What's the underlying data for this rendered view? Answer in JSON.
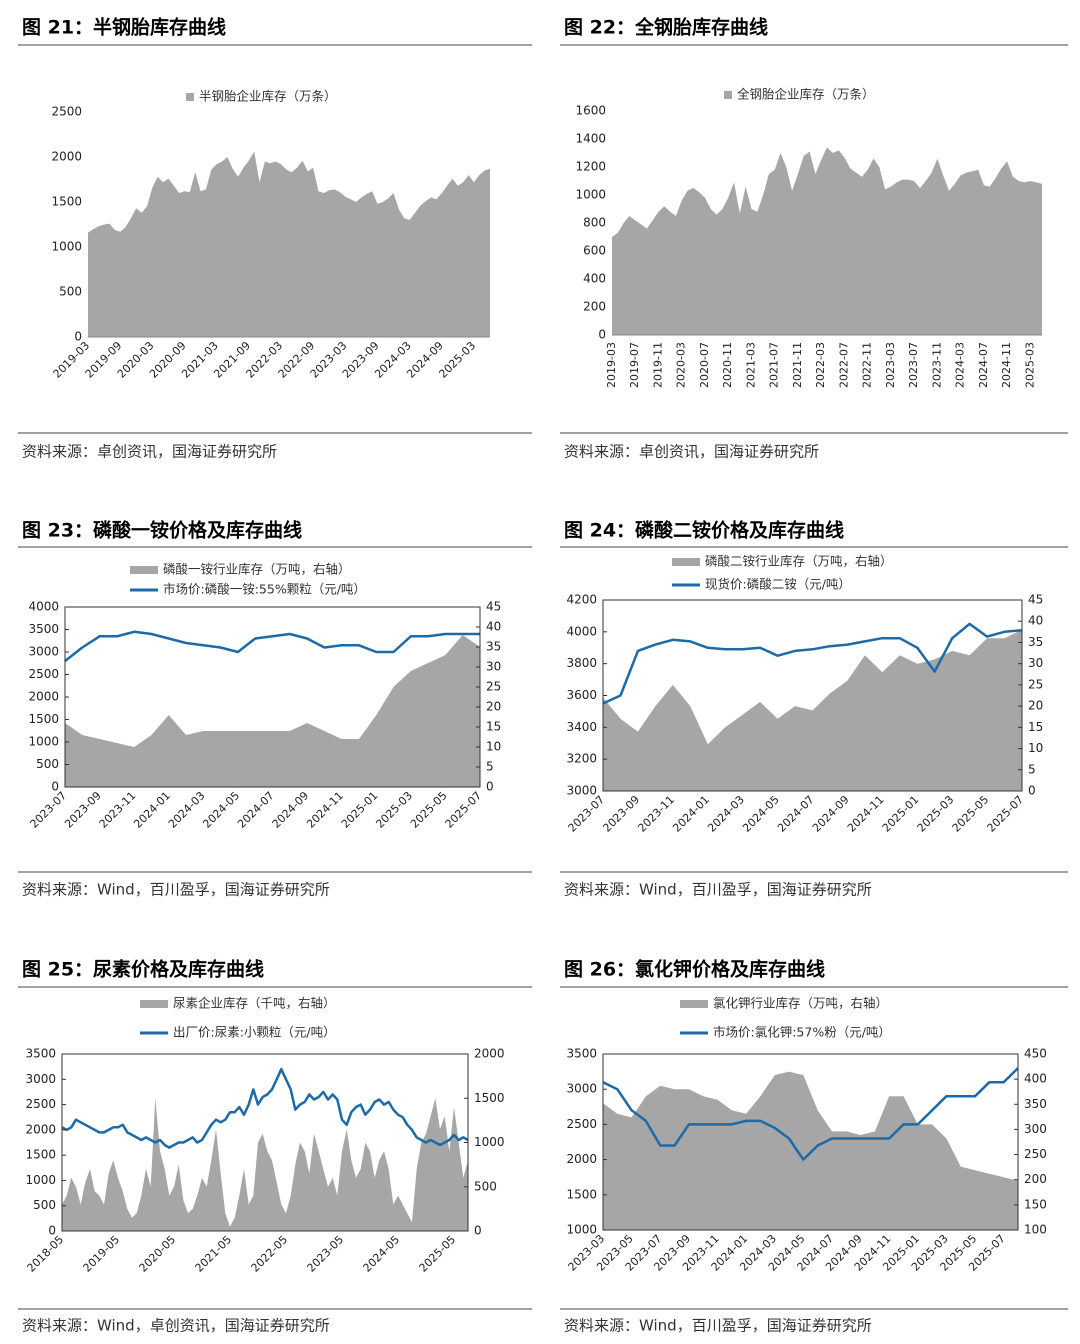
{
  "chart_data": [
    {
      "type": "area",
      "title": "图 21：半钢胎库存曲线",
      "source": "资料来源：卓创资讯，国海证券研究所",
      "categories": [
        "2019-03",
        null,
        null,
        null,
        null,
        null,
        "2019-09",
        null,
        null,
        null,
        null,
        null,
        "2020-03",
        null,
        null,
        null,
        null,
        null,
        "2020-09",
        null,
        null,
        null,
        null,
        null,
        "2021-03",
        null,
        null,
        null,
        null,
        null,
        "2021-09",
        null,
        null,
        null,
        null,
        null,
        "2022-03",
        null,
        null,
        null,
        null,
        null,
        "2022-09",
        null,
        null,
        null,
        null,
        null,
        "2023-03",
        null,
        null,
        null,
        null,
        null,
        "2023-09",
        null,
        null,
        null,
        null,
        null,
        "2024-03",
        null,
        null,
        null,
        null,
        null,
        "2024-09",
        null,
        null,
        null,
        null,
        null,
        "2025-03",
        null,
        null,
        null
      ],
      "series": [
        {
          "name": "半钢胎企业库存（万条）",
          "type": "area",
          "color": "#a6a6a6",
          "values": [
            1160,
            1200,
            1230,
            1250,
            1260,
            1190,
            1170,
            1220,
            1320,
            1430,
            1380,
            1450,
            1660,
            1780,
            1720,
            1760,
            1680,
            1600,
            1620,
            1610,
            1830,
            1620,
            1640,
            1860,
            1920,
            1950,
            2000,
            1870,
            1780,
            1880,
            1960,
            2060,
            1720,
            1950,
            1930,
            1950,
            1920,
            1860,
            1830,
            1880,
            1960,
            1840,
            1880,
            1620,
            1600,
            1630,
            1640,
            1610,
            1560,
            1530,
            1500,
            1550,
            1590,
            1620,
            1480,
            1500,
            1540,
            1600,
            1420,
            1320,
            1300,
            1380,
            1460,
            1510,
            1550,
            1530,
            1600,
            1680,
            1760,
            1680,
            1720,
            1800,
            1720,
            1800,
            1850,
            1870
          ]
        }
      ],
      "ylim": [
        0,
        2500
      ],
      "yticks": [
        0,
        500,
        1000,
        1500,
        2000,
        2500
      ]
    },
    {
      "type": "area",
      "title": "图 22：全钢胎库存曲线",
      "source": "资料来源：卓创资讯，国海证券研究所",
      "categories": [
        "2019-03",
        null,
        null,
        null,
        "2019-07",
        null,
        null,
        null,
        "2019-11",
        null,
        null,
        null,
        "2020-03",
        null,
        null,
        null,
        "2020-07",
        null,
        null,
        null,
        "2020-11",
        null,
        null,
        null,
        "2021-03",
        null,
        null,
        null,
        "2021-07",
        null,
        null,
        null,
        "2021-11",
        null,
        null,
        null,
        "2022-03",
        null,
        null,
        null,
        "2022-07",
        null,
        null,
        null,
        "2022-11",
        null,
        null,
        null,
        "2023-03",
        null,
        null,
        null,
        "2023-07",
        null,
        null,
        null,
        "2023-11",
        null,
        null,
        null,
        "2024-03",
        null,
        null,
        null,
        "2024-07",
        null,
        null,
        null,
        "2024-11",
        null,
        null,
        null,
        "2025-03",
        null,
        null
      ],
      "series": [
        {
          "name": "全钢胎企业库存（万条）",
          "type": "area",
          "color": "#a6a6a6",
          "values": [
            700,
            730,
            800,
            850,
            820,
            790,
            760,
            820,
            880,
            920,
            880,
            850,
            960,
            1030,
            1050,
            1020,
            980,
            900,
            860,
            900,
            980,
            1090,
            870,
            1060,
            900,
            880,
            1000,
            1150,
            1180,
            1300,
            1200,
            1030,
            1150,
            1280,
            1310,
            1150,
            1250,
            1340,
            1300,
            1320,
            1270,
            1190,
            1160,
            1130,
            1180,
            1260,
            1200,
            1040,
            1060,
            1090,
            1110,
            1110,
            1100,
            1050,
            1100,
            1160,
            1260,
            1140,
            1030,
            1080,
            1140,
            1160,
            1170,
            1180,
            1070,
            1060,
            1120,
            1190,
            1240,
            1130,
            1100,
            1090,
            1100,
            1090,
            1080
          ]
        }
      ],
      "ylim": [
        0,
        1600
      ],
      "yticks": [
        0,
        200,
        400,
        600,
        800,
        1000,
        1200,
        1400,
        1600
      ]
    },
    {
      "type": "combo",
      "title": "图 23：磷酸一铵价格及库存曲线",
      "source": "资料来源：Wind，百川盈孚，国海证券研究所",
      "categories": [
        "2023-07",
        null,
        "2023-09",
        null,
        "2023-11",
        null,
        "2024-01",
        null,
        "2024-03",
        null,
        "2024-05",
        null,
        "2024-07",
        null,
        "2024-09",
        null,
        "2024-11",
        null,
        "2025-01",
        null,
        "2025-03",
        null,
        "2025-05",
        null,
        "2025-07"
      ],
      "series": [
        {
          "name": "磷酸一铵行业库存（万吨，右轴）",
          "type": "area",
          "axis": "y2",
          "color": "#a6a6a6",
          "values": [
            16,
            13,
            12,
            11,
            10,
            13,
            18,
            13,
            14,
            14,
            14,
            14,
            14,
            14,
            16,
            14,
            12,
            12,
            18,
            25,
            29,
            31,
            33,
            38,
            35
          ]
        },
        {
          "name": "市场价:磷酸一铵:55%颗粒（元/吨）",
          "type": "line",
          "color": "#1c6aa8",
          "values": [
            2800,
            3100,
            3350,
            3350,
            3450,
            3400,
            3300,
            3200,
            3150,
            3100,
            3000,
            3300,
            3350,
            3400,
            3300,
            3100,
            3150,
            3150,
            3000,
            3000,
            3350,
            3350,
            3400,
            3400,
            3400
          ]
        }
      ],
      "ylim": [
        0,
        4000
      ],
      "yticks": [
        0,
        500,
        1000,
        1500,
        2000,
        2500,
        3000,
        3500,
        4000
      ],
      "y2lim": [
        0,
        45
      ],
      "y2ticks": [
        0,
        5,
        10,
        15,
        20,
        25,
        30,
        35,
        40,
        45
      ]
    },
    {
      "type": "combo",
      "title": "图 24：磷酸二铵价格及库存曲线",
      "source": "资料来源：Wind，百川盈孚，国海证券研究所",
      "categories": [
        "2023-07",
        null,
        "2023-09",
        null,
        "2023-11",
        null,
        "2024-01",
        null,
        "2024-03",
        null,
        "2024-05",
        null,
        "2024-07",
        null,
        "2024-09",
        null,
        "2024-11",
        null,
        "2025-01",
        null,
        "2025-03",
        null,
        "2025-05",
        null,
        "2025-07"
      ],
      "series": [
        {
          "name": "磷酸二铵行业库存（万吨，右轴）",
          "type": "area",
          "axis": "y2",
          "color": "#a6a6a6",
          "values": [
            22,
            17,
            14,
            20,
            25,
            20,
            11,
            15,
            18,
            21,
            17,
            20,
            19,
            23,
            26,
            32,
            28,
            32,
            30,
            31,
            33,
            32,
            36,
            36,
            38
          ]
        },
        {
          "name": "现货价:磷酸二铵（元/吨）",
          "type": "line",
          "color": "#1c6aa8",
          "values": [
            3550,
            3600,
            3880,
            3920,
            3950,
            3940,
            3900,
            3890,
            3890,
            3900,
            3850,
            3880,
            3890,
            3910,
            3920,
            3940,
            3960,
            3960,
            3900,
            3750,
            3960,
            4050,
            3970,
            4000,
            4010
          ]
        }
      ],
      "ylim": [
        3000,
        4200
      ],
      "yticks": [
        3000,
        3200,
        3400,
        3600,
        3800,
        4000,
        4200
      ],
      "y2lim": [
        0,
        45
      ],
      "y2ticks": [
        0,
        5,
        10,
        15,
        20,
        25,
        30,
        35,
        40,
        45
      ]
    },
    {
      "type": "combo",
      "title": "图 25：尿素价格及库存曲线",
      "source": "资料来源：Wind，卓创资讯，国海证券研究所",
      "categories": [
        "2018-05",
        null,
        null,
        null,
        null,
        null,
        null,
        null,
        null,
        null,
        null,
        null,
        "2019-05",
        null,
        null,
        null,
        null,
        null,
        null,
        null,
        null,
        null,
        null,
        null,
        "2020-05",
        null,
        null,
        null,
        null,
        null,
        null,
        null,
        null,
        null,
        null,
        null,
        "2021-05",
        null,
        null,
        null,
        null,
        null,
        null,
        null,
        null,
        null,
        null,
        null,
        "2022-05",
        null,
        null,
        null,
        null,
        null,
        null,
        null,
        null,
        null,
        null,
        null,
        "2023-05",
        null,
        null,
        null,
        null,
        null,
        null,
        null,
        null,
        null,
        null,
        null,
        "2024-05",
        null,
        null,
        null,
        null,
        null,
        null,
        null,
        null,
        null,
        null,
        null,
        "2025-05",
        null,
        null,
        null
      ],
      "series": [
        {
          "name": "尿素企业库存（千吨，右轴）",
          "type": "area",
          "axis": "y2",
          "color": "#a6a6a6",
          "values": [
            300,
            400,
            600,
            500,
            300,
            550,
            700,
            450,
            400,
            300,
            650,
            800,
            600,
            450,
            250,
            150,
            200,
            400,
            700,
            500,
            1500,
            900,
            700,
            400,
            500,
            750,
            350,
            200,
            250,
            400,
            600,
            500,
            800,
            1150,
            650,
            200,
            50,
            150,
            400,
            700,
            300,
            400,
            1000,
            1100,
            900,
            800,
            550,
            300,
            200,
            400,
            750,
            1000,
            900,
            650,
            1100,
            900,
            700,
            500,
            600,
            400,
            900,
            1150,
            800,
            600,
            700,
            1000,
            900,
            600,
            800,
            900,
            700,
            300,
            400,
            300,
            200,
            100,
            700,
            1000,
            1100,
            1300,
            1500,
            1150,
            1300,
            900,
            1400,
            1000,
            600,
            800
          ]
        },
        {
          "name": "出厂价:尿素:小颗粒（元/吨）",
          "type": "line",
          "color": "#1c6aa8",
          "values": [
            2050,
            2000,
            2050,
            2200,
            2150,
            2100,
            2050,
            2000,
            1950,
            1950,
            2000,
            2050,
            2050,
            2100,
            1950,
            1900,
            1850,
            1800,
            1850,
            1800,
            1750,
            1800,
            1700,
            1650,
            1700,
            1750,
            1750,
            1800,
            1850,
            1750,
            1800,
            1950,
            2100,
            2200,
            2150,
            2200,
            2350,
            2350,
            2450,
            2300,
            2500,
            2800,
            2500,
            2650,
            2700,
            2800,
            3000,
            3200,
            3000,
            2800,
            2400,
            2500,
            2550,
            2700,
            2600,
            2650,
            2750,
            2600,
            2700,
            2600,
            2200,
            2100,
            2350,
            2450,
            2500,
            2300,
            2400,
            2550,
            2600,
            2500,
            2550,
            2400,
            2300,
            2250,
            2100,
            2000,
            1850,
            1800,
            1750,
            1800,
            1750,
            1700,
            1750,
            1800,
            1900,
            1800,
            1850,
            1800
          ]
        }
      ],
      "ylim": [
        0,
        3500
      ],
      "yticks": [
        0,
        500,
        1000,
        1500,
        2000,
        2500,
        3000,
        3500
      ],
      "y2lim": [
        0,
        2000
      ],
      "y2ticks": [
        0,
        500,
        1000,
        1500,
        2000
      ]
    },
    {
      "type": "combo",
      "title": "图 26：氯化钾价格及库存曲线",
      "source": "资料来源：Wind，百川盈孚，国海证券研究所",
      "categories": [
        "2023-03",
        null,
        "2023-05",
        null,
        "2023-07",
        null,
        "2023-09",
        null,
        "2023-11",
        null,
        "2024-01",
        null,
        "2024-03",
        null,
        "2024-05",
        null,
        "2024-07",
        null,
        "2024-09",
        null,
        "2024-11",
        null,
        "2025-01",
        null,
        "2025-03",
        null,
        "2025-05",
        null,
        "2025-07",
        null
      ],
      "series": [
        {
          "name": "氯化钾行业库存（万吨，右轴）",
          "type": "area",
          "axis": "y2",
          "color": "#a6a6a6",
          "values": [
            352,
            331,
            324,
            366,
            387,
            380,
            380,
            366,
            359,
            338,
            331,
            366,
            408,
            415,
            408,
            338,
            296,
            296,
            289,
            296,
            366,
            366,
            310,
            310,
            282,
            226,
            219,
            212,
            205,
            198
          ]
        },
        {
          "name": "市场价:氯化钾:57%粉（元/吨）",
          "type": "line",
          "color": "#1c6aa8",
          "values": [
            3100,
            3000,
            2700,
            2550,
            2200,
            2200,
            2500,
            2500,
            2500,
            2500,
            2550,
            2550,
            2450,
            2300,
            2000,
            2200,
            2300,
            2300,
            2300,
            2300,
            2300,
            2500,
            2500,
            2700,
            2900,
            2900,
            2900,
            3100,
            3100,
            3300
          ]
        }
      ],
      "ylim": [
        1000,
        3500
      ],
      "yticks": [
        1000,
        1500,
        2000,
        2500,
        3000,
        3500
      ],
      "y2lim": [
        100,
        450
      ],
      "y2ticks": [
        100,
        150,
        200,
        250,
        300,
        350,
        400,
        450
      ]
    }
  ]
}
